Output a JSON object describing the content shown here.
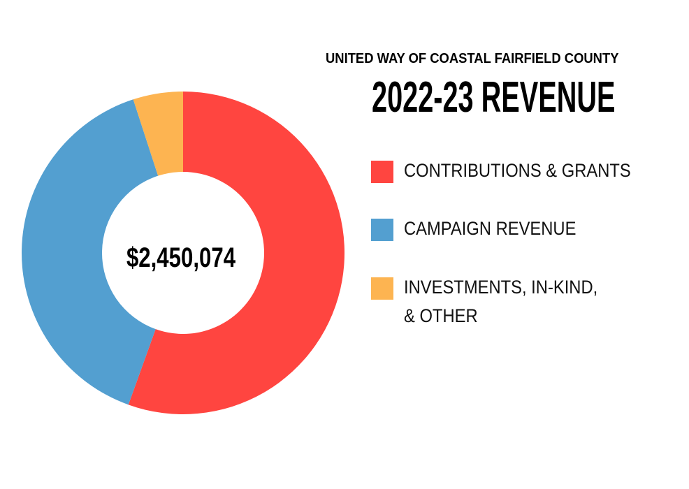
{
  "header": {
    "org_name": "UNITED WAY OF COASTAL FAIRFIELD COUNTY",
    "title": "2022-23 REVENUE"
  },
  "chart_data": {
    "type": "pie",
    "variant": "donut",
    "title": "2022-23 REVENUE",
    "center_label": "$2,450,074",
    "total": 2450074,
    "categories": [
      "CONTRIBUTIONS & GRANTS",
      "CAMPAIGN REVENUE",
      "INVESTMENTS, IN-KIND, & OTHER"
    ],
    "values": [
      55.5,
      39.5,
      5.0
    ],
    "value_unit": "percent of total (estimated from slice angles)",
    "colors": [
      "#ff4540",
      "#539fd0",
      "#fdb451"
    ],
    "legend": {
      "position": "right",
      "entries": [
        {
          "label": "CONTRIBUTIONS & GRANTS",
          "color": "#ff4540"
        },
        {
          "label": "CAMPAIGN REVENUE",
          "color": "#539fd0"
        },
        {
          "label": "INVESTMENTS, IN-KIND,\n& OTHER",
          "color": "#fdb451"
        }
      ]
    }
  }
}
